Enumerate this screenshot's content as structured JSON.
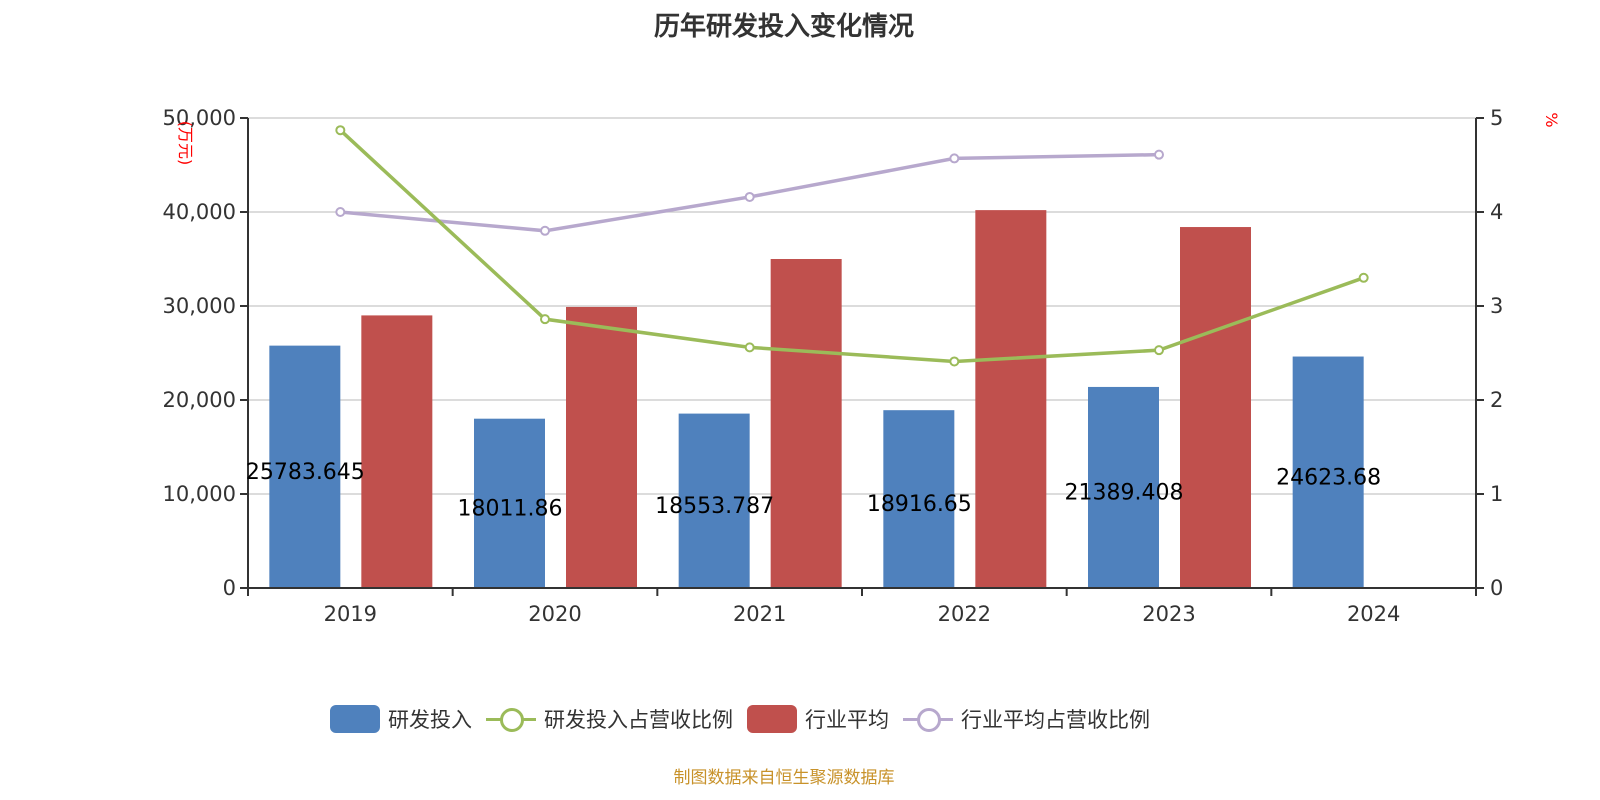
{
  "chart_data": {
    "type": "bar",
    "title": "历年研发投入变化情况",
    "categories": [
      "2019",
      "2020",
      "2021",
      "2022",
      "2023",
      "2024"
    ],
    "y_left": {
      "label": "(万元)",
      "range": [
        0,
        50000
      ],
      "ticks": [
        "0",
        "10,000",
        "20,000",
        "30,000",
        "40,000",
        "50,000"
      ],
      "tick_values": [
        0,
        10000,
        20000,
        30000,
        40000,
        50000
      ]
    },
    "y_right": {
      "label": "%",
      "range": [
        0,
        5
      ],
      "ticks": [
        "0",
        "1",
        "2",
        "3",
        "4",
        "5"
      ],
      "tick_values": [
        0,
        1,
        2,
        3,
        4,
        5
      ]
    },
    "grid": true,
    "legend_position": "bottom",
    "series": [
      {
        "name": "研发投入",
        "type": "bar",
        "axis": "left",
        "color": "#4f81bd",
        "values": [
          25783.645,
          18011.86,
          18553.787,
          18916.65,
          21389.408,
          24623.68
        ],
        "labels": [
          "25783.645",
          "18011.86",
          "18553.787",
          "18916.65",
          "21389.408",
          "24623.68"
        ]
      },
      {
        "name": "研发投入占营收比例",
        "type": "line",
        "axis": "right",
        "color": "#9bbb59",
        "values": [
          4.87,
          2.86,
          2.56,
          2.41,
          2.53,
          3.3
        ]
      },
      {
        "name": "行业平均",
        "type": "bar",
        "axis": "left",
        "color": "#c0504d",
        "values": [
          29000,
          29900,
          35000,
          40200,
          38400,
          null
        ]
      },
      {
        "name": "行业平均占营收比例",
        "type": "line",
        "axis": "right",
        "color": "#b7a8cd",
        "values": [
          4.0,
          3.8,
          4.16,
          4.57,
          4.61,
          null
        ]
      }
    ]
  },
  "source": "制图数据来自恒生聚源数据库"
}
